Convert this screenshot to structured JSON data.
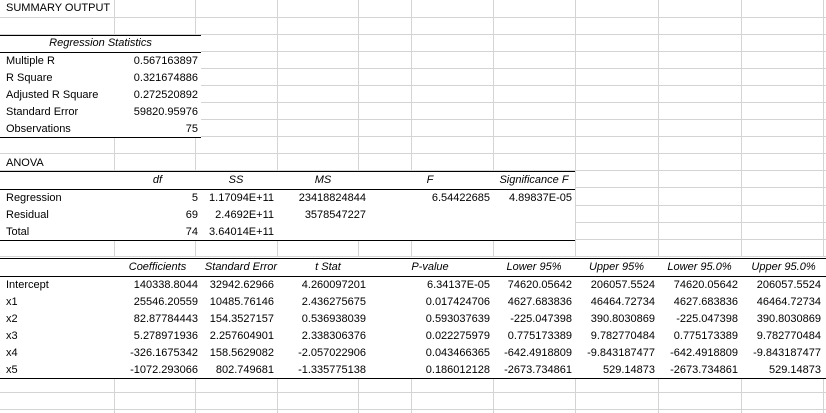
{
  "title": "SUMMARY OUTPUT",
  "regression_statistics": {
    "header": "Regression Statistics",
    "rows": [
      {
        "label": "Multiple R",
        "value": "0.567163897"
      },
      {
        "label": "R Square",
        "value": "0.321674886"
      },
      {
        "label": "Adjusted R Square",
        "value": "0.272520892"
      },
      {
        "label": "Standard Error",
        "value": "59820.95976"
      },
      {
        "label": "Observations",
        "value": "75"
      }
    ]
  },
  "anova": {
    "title": "ANOVA",
    "headers": [
      "df",
      "SS",
      "MS",
      "F",
      "Significance F"
    ],
    "rows": [
      {
        "label": "Regression",
        "df": "5",
        "ss": "1.17094E+11",
        "ms": "23418824844",
        "f": "6.54422685",
        "sig": "4.89837E-05"
      },
      {
        "label": "Residual",
        "df": "69",
        "ss": "2.4692E+11",
        "ms": "3578547227",
        "f": "",
        "sig": ""
      },
      {
        "label": "Total",
        "df": "74",
        "ss": "3.64014E+11",
        "ms": "",
        "f": "",
        "sig": ""
      }
    ]
  },
  "coefficients": {
    "headers": [
      "Coefficients",
      "Standard Error",
      "t Stat",
      "P-value",
      "Lower 95%",
      "Upper 95%",
      "Lower 95.0%",
      "Upper 95.0%"
    ],
    "rows": [
      {
        "label": "Intercept",
        "vals": [
          "140338.8044",
          "32942.62966",
          "4.260097201",
          "6.34137E-05",
          "74620.05642",
          "206057.5524",
          "74620.05642",
          "206057.5524"
        ]
      },
      {
        "label": "x1",
        "vals": [
          "25546.20559",
          "10485.76146",
          "2.436275675",
          "0.017424706",
          "4627.683836",
          "46464.72734",
          "4627.683836",
          "46464.72734"
        ]
      },
      {
        "label": "x2",
        "vals": [
          "82.87784443",
          "154.3527157",
          "0.536938039",
          "0.593037639",
          "-225.047398",
          "390.8030869",
          "-225.047398",
          "390.8030869"
        ]
      },
      {
        "label": "x3",
        "vals": [
          "5.278971936",
          "2.257604901",
          "2.338306376",
          "0.022275979",
          "0.775173389",
          "9.782770484",
          "0.775173389",
          "9.782770484"
        ]
      },
      {
        "label": "x4",
        "vals": [
          "-326.1675342",
          "158.5629082",
          "-2.057022906",
          "0.043466365",
          "-642.4918809",
          "-9.843187477",
          "-642.4918809",
          "-9.843187477"
        ]
      },
      {
        "label": "x5",
        "vals": [
          "-1072.293066",
          "802.749681",
          "-1.335775138",
          "0.186012128",
          "-2673.734861",
          "529.14873",
          "-2673.734861",
          "529.14873"
        ]
      }
    ]
  }
}
